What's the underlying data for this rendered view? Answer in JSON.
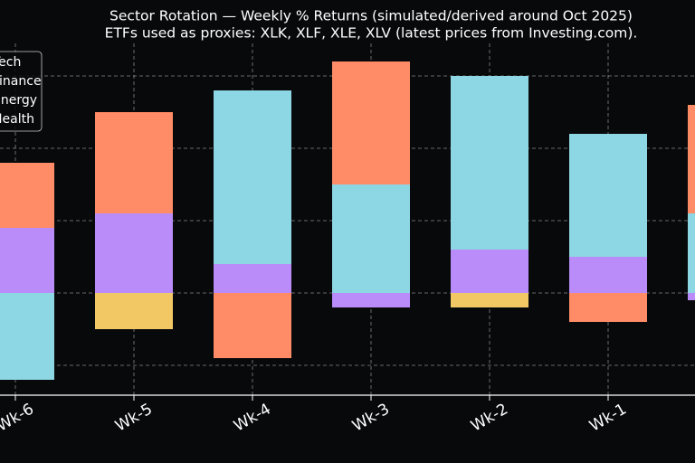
{
  "chart_data": {
    "type": "stacked_bar",
    "title": "Sector Rotation — Weekly % Returns (simulated/derived around Oct 2025)",
    "subtitle": "ETFs used as proxies: XLK, XLF, XLE, XLV (latest prices from Investing.com).",
    "categories": [
      "Wk-6",
      "Wk-5",
      "Wk-4",
      "Wk-3",
      "Wk-2",
      "Wk-1",
      null
    ],
    "series": [
      {
        "name": "Tech",
        "color": "#b98cfa",
        "values": [
          0.9,
          1.1,
          0.4,
          -0.2,
          0.6,
          0.5,
          -0.1
        ]
      },
      {
        "name": "Finance",
        "color": "#f2c865",
        "values": [
          0,
          -0.5,
          0,
          0,
          -0.2,
          0,
          0
        ]
      },
      {
        "name": "Energy",
        "color": "#8dd6e3",
        "values": [
          -1.2,
          0,
          2.4,
          1.5,
          2.4,
          1.7,
          1.1
        ]
      },
      {
        "name": "Health",
        "color": "#ff8c66",
        "values": [
          0.9,
          1.4,
          -0.9,
          1.7,
          0,
          -0.4,
          1.5
        ]
      }
    ],
    "ylim": [
      -1.4,
      3.4
    ],
    "yticks": [
      -1,
      0,
      1,
      2,
      3
    ],
    "grid": true,
    "legend": "upper left"
  }
}
